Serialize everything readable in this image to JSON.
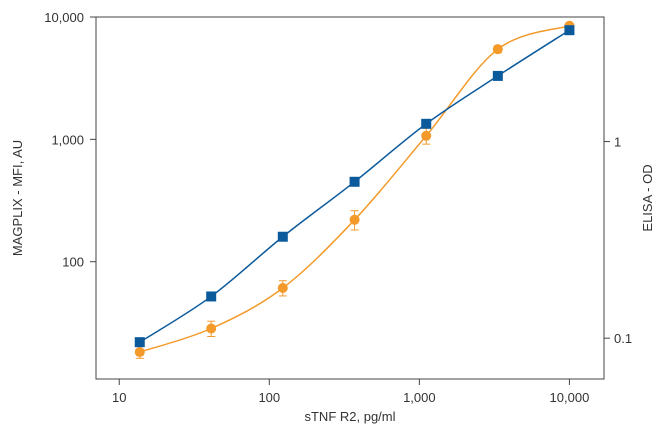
{
  "chart_data": {
    "type": "scatter",
    "title": "",
    "xlabel": "sTNF R2, pg/ml",
    "ylabel": "MAGPLIX - MFI, AU",
    "y2label": "ELISA - OD",
    "x_scale": "log",
    "y_scale": "log",
    "y2_scale": "log",
    "xlim": [
      7,
      17000
    ],
    "ylim": [
      11,
      10000
    ],
    "y2lim": [
      0.062,
      4.3
    ],
    "x_ticks": [
      10,
      100,
      1000,
      10000
    ],
    "x_tick_labels": [
      "10",
      "100",
      "1,000",
      "10,000"
    ],
    "y_ticks": [
      100,
      1000,
      10000
    ],
    "y_tick_labels": [
      "100",
      "1,000",
      "10,000"
    ],
    "y2_ticks": [
      0.1,
      1
    ],
    "y2_tick_labels": [
      "0.1",
      "1"
    ],
    "grid": false,
    "series": [
      {
        "axis": "left",
        "marker": "square",
        "color": "#0b5a9c",
        "x": [
          13.7,
          41,
          123,
          370,
          1111,
          3333,
          10000
        ],
        "y": [
          22,
          52,
          160,
          450,
          1340,
          3300,
          7800
        ]
      },
      {
        "axis": "right",
        "marker": "circle",
        "color": "#f39a2a",
        "x": [
          13.7,
          41,
          123,
          370,
          1111,
          3333,
          10000
        ],
        "y": [
          0.085,
          0.112,
          0.18,
          0.4,
          1.07,
          2.95,
          3.88
        ],
        "error": [
          0.006,
          0.01,
          0.016,
          0.045,
          0.1,
          0.12,
          0.13
        ]
      }
    ]
  }
}
